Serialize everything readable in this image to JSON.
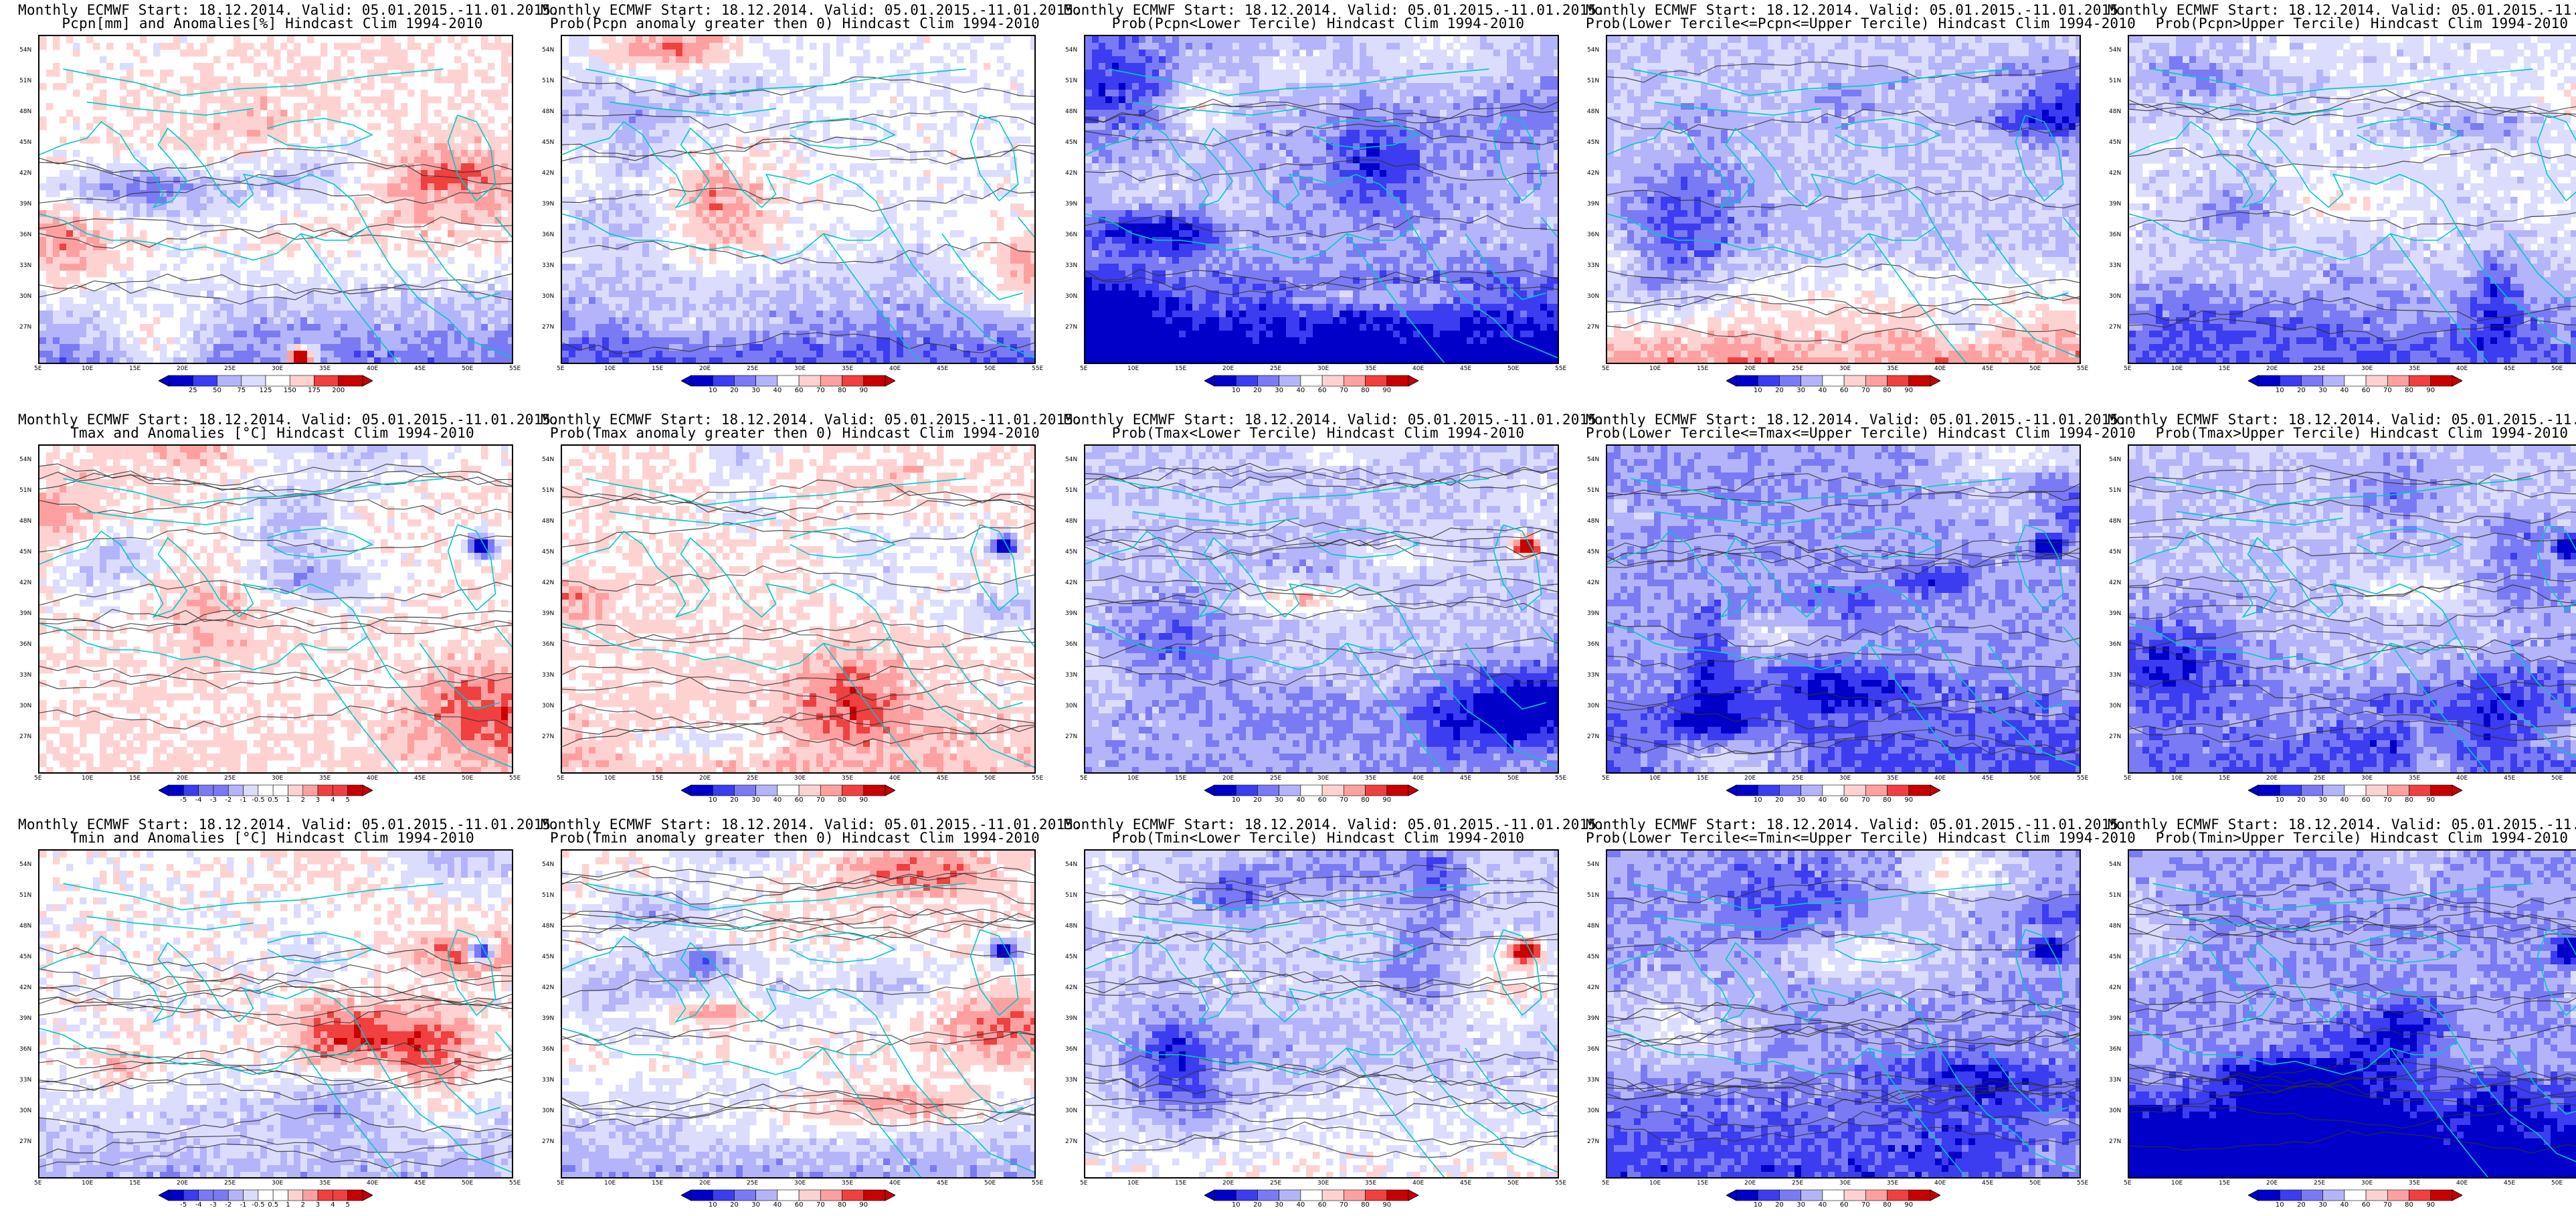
{
  "header": "Monthly ECMWF Start: 18.12.2014. Valid: 05.01.2015.-11.01.2015.",
  "lat_labels": [
    "54N",
    "51N",
    "48N",
    "45N",
    "42N",
    "39N",
    "36N",
    "33N",
    "30N",
    "27N"
  ],
  "lon_labels": [
    "5E",
    "10E",
    "15E",
    "20E",
    "25E",
    "30E",
    "35E",
    "40E",
    "45E",
    "50E",
    "55E"
  ],
  "colors": {
    "deep_blue": "#0000c8",
    "blue": "#3c3cf0",
    "mid_blue": "#7a7af5",
    "light_blue": "#b4b4fa",
    "pale_blue": "#dcdcff",
    "white": "#ffffff",
    "pale_red": "#ffd2d2",
    "light_red": "#ffa0a0",
    "red": "#f04040",
    "deep_red": "#c80000",
    "coast": "#00c8c8",
    "contour": "#303030"
  },
  "scales": {
    "pcpn": [
      "25",
      "50",
      "75",
      "125",
      "150",
      "175",
      "200"
    ],
    "prob": [
      "10",
      "20",
      "30",
      "40",
      "60",
      "70",
      "80",
      "90"
    ],
    "temp": [
      "-5",
      "-4",
      "-3",
      "-2",
      "-1",
      "-0.5",
      "0.5",
      "1",
      "2",
      "3",
      "4",
      "5"
    ]
  },
  "panels": [
    {
      "row": 0,
      "col": 0,
      "subtitle": "Pcpn[mm] and Anomalies[%] Hindcast Clim 1994-2010",
      "scale": "pcpn",
      "icon": "precip-anomaly-map",
      "bias": 0.1,
      "south": -0.9,
      "contour_density": 0.4
    },
    {
      "row": 0,
      "col": 1,
      "subtitle": "Prob(Pcpn anomaly greater then 0) Hindcast Clim 1994-2010",
      "scale": "prob",
      "icon": "precip-prob-map",
      "bias": -0.05,
      "south": -0.85,
      "contour_density": 0.4
    },
    {
      "row": 0,
      "col": 2,
      "subtitle": "Prob(Pcpn<Lower Tercile) Hindcast Clim 1994-2010",
      "scale": "prob",
      "icon": "precip-lower-map",
      "bias": -0.45,
      "south": -1.0,
      "contour_density": 0.4
    },
    {
      "row": 0,
      "col": 3,
      "subtitle": "Prob(Lower Tercile<=Pcpn<=Upper Tercile) Hindcast Clim 1994-2010",
      "scale": "prob",
      "icon": "precip-normal-map",
      "bias": -0.35,
      "south": 0.9,
      "contour_density": 0.4
    },
    {
      "row": 0,
      "col": 4,
      "subtitle": "Prob(Pcpn>Upper Tercile) Hindcast Clim 1994-2010",
      "scale": "prob",
      "icon": "precip-upper-map",
      "bias": -0.2,
      "south": -0.7,
      "contour_density": 0.4
    },
    {
      "row": 1,
      "col": 0,
      "subtitle": "Tmax and Anomalies [°C] Hindcast Clim 1994-2010",
      "scale": "temp",
      "icon": "tmax-anomaly-map",
      "bias": 0.05,
      "south": 0.15,
      "contour_density": 1.0
    },
    {
      "row": 1,
      "col": 1,
      "subtitle": "Prob(Tmax anomaly greater then 0) Hindcast Clim 1994-2010",
      "scale": "prob",
      "icon": "tmax-prob-map",
      "bias": 0.1,
      "south": 0.2,
      "contour_density": 1.0
    },
    {
      "row": 1,
      "col": 2,
      "subtitle": "Prob(Tmax<Lower Tercile) Hindcast Clim 1994-2010",
      "scale": "prob",
      "icon": "tmax-lower-map",
      "bias": -0.35,
      "south": -0.2,
      "contour_density": 1.0
    },
    {
      "row": 1,
      "col": 3,
      "subtitle": "Prob(Lower Tercile<=Tmax<=Upper Tercile) Hindcast Clim 1994-2010",
      "scale": "prob",
      "icon": "tmax-normal-map",
      "bias": -0.55,
      "south": -0.4,
      "contour_density": 1.0
    },
    {
      "row": 1,
      "col": 4,
      "subtitle": "Prob(Tmax>Upper Tercile) Hindcast Clim 1994-2010",
      "scale": "prob",
      "icon": "tmax-upper-map",
      "bias": -0.4,
      "south": -0.45,
      "contour_density": 1.0
    },
    {
      "row": 2,
      "col": 0,
      "subtitle": "Tmin and Anomalies [°C] Hindcast Clim 1994-2010",
      "scale": "temp",
      "icon": "tmin-anomaly-map",
      "bias": 0.0,
      "south": -0.5,
      "contour_density": 1.4
    },
    {
      "row": 2,
      "col": 1,
      "subtitle": "Prob(Tmin anomaly greater then 0) Hindcast Clim 1994-2010",
      "scale": "prob",
      "icon": "tmin-prob-map",
      "bias": 0.05,
      "south": -0.6,
      "contour_density": 1.4
    },
    {
      "row": 2,
      "col": 2,
      "subtitle": "Prob(Tmin<Lower Tercile) Hindcast Clim 1994-2010",
      "scale": "prob",
      "icon": "tmin-lower-map",
      "bias": -0.3,
      "south": 0.35,
      "contour_density": 1.4
    },
    {
      "row": 2,
      "col": 3,
      "subtitle": "Prob(Lower Tercile<=Tmin<=Upper Tercile) Hindcast Clim 1994-2010",
      "scale": "prob",
      "icon": "tmin-normal-map",
      "bias": -0.55,
      "south": -0.45,
      "contour_density": 1.4
    },
    {
      "row": 2,
      "col": 4,
      "subtitle": "Prob(Tmin>Upper Tercile) Hindcast Clim 1994-2010",
      "scale": "prob",
      "icon": "tmin-upper-map",
      "bias": -0.55,
      "south": -0.95,
      "contour_density": 1.4
    }
  ]
}
